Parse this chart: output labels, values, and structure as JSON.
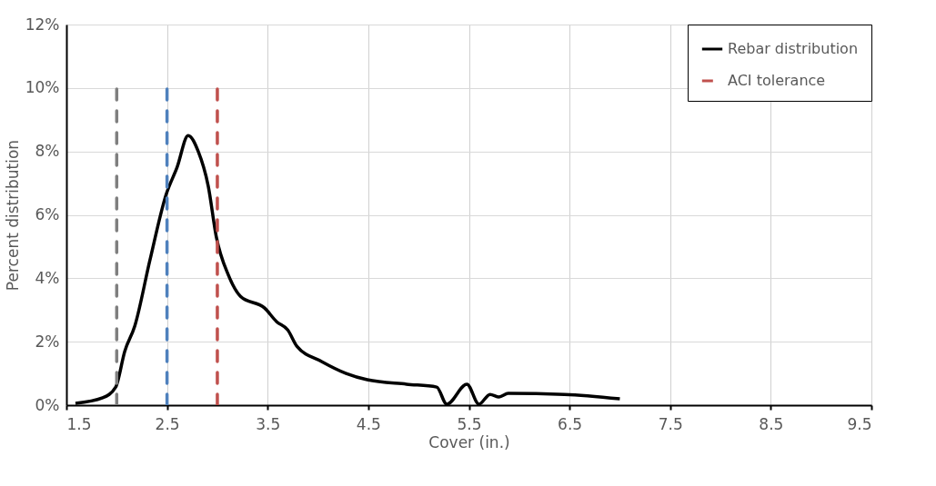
{
  "chart_data": {
    "type": "line",
    "xlabel": "Cover (in.)",
    "ylabel": "Percent distribution",
    "xlim": [
      1.5,
      9.5
    ],
    "xticks": [
      1.5,
      2.5,
      3.5,
      4.5,
      5.5,
      6.5,
      7.5,
      8.5,
      9.5
    ],
    "ylim": [
      0,
      12
    ],
    "yticks": [
      {
        "value": 0,
        "label": "0%"
      },
      {
        "value": 2,
        "label": "2%"
      },
      {
        "value": 4,
        "label": "4%"
      },
      {
        "value": 6,
        "label": "6%"
      },
      {
        "value": 8,
        "label": "8%"
      },
      {
        "value": 10,
        "label": "10%"
      },
      {
        "value": 12,
        "label": "12%"
      }
    ],
    "grid": true,
    "legend": "top right",
    "marker": "none",
    "series": [
      {
        "name": "Rebar distribution",
        "color": "#000000",
        "line_style": "solid",
        "x": [
          1.59,
          1.86,
          1.99,
          2.08,
          2.18,
          2.33,
          2.49,
          2.6,
          2.71,
          2.81,
          2.91,
          2.99,
          3.11,
          3.23,
          3.47,
          3.59,
          3.7,
          3.79,
          4.04,
          4.28,
          4.49,
          4.88,
          5.18,
          5.28,
          5.48,
          5.6,
          5.71,
          5.8,
          5.89,
          6.45,
          7.0
        ],
        "values": [
          0.06,
          0.23,
          0.57,
          1.7,
          2.5,
          4.57,
          6.63,
          7.5,
          8.5,
          8.0,
          6.9,
          5.3,
          4.1,
          3.43,
          3.06,
          2.63,
          2.37,
          1.86,
          1.37,
          1.0,
          0.8,
          0.66,
          0.57,
          0.03,
          0.66,
          0.03,
          0.34,
          0.26,
          0.37,
          0.34,
          0.2
        ]
      },
      {
        "color": "#7f7f7f",
        "line_style": "dashed",
        "x": [
          2,
          2
        ],
        "values": [
          0,
          10
        ]
      },
      {
        "color": "#4f81bd",
        "line_style": "dashed",
        "x": [
          2.5,
          2.5
        ],
        "values": [
          0,
          10
        ]
      },
      {
        "name": "ACI tolerance",
        "color": "#c0504d",
        "line_style": "dashed",
        "x": [
          3,
          3
        ],
        "values": [
          0,
          10
        ]
      }
    ]
  }
}
